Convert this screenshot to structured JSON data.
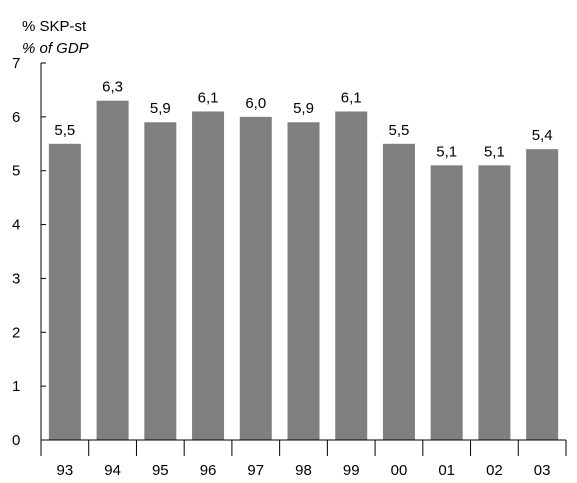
{
  "chart_data": {
    "type": "bar",
    "ylabel": "% SKP-st",
    "ylabel_translation": "% of GDP",
    "categories": [
      "93",
      "94",
      "95",
      "96",
      "97",
      "98",
      "99",
      "00",
      "01",
      "02",
      "03"
    ],
    "values": [
      5.5,
      6.3,
      5.9,
      6.1,
      6.0,
      5.9,
      6.1,
      5.5,
      5.1,
      5.1,
      5.4
    ],
    "data_labels": [
      "5,5",
      "6,3",
      "5,9",
      "6,1",
      "6,0",
      "5,9",
      "6,1",
      "5,5",
      "5,1",
      "5,1",
      "5,4"
    ],
    "yticks": [
      "0",
      "1",
      "2",
      "3",
      "4",
      "5",
      "6",
      "7"
    ],
    "ylim": [
      0,
      7
    ],
    "bar_color": "#7f7f7f",
    "grid": false
  }
}
